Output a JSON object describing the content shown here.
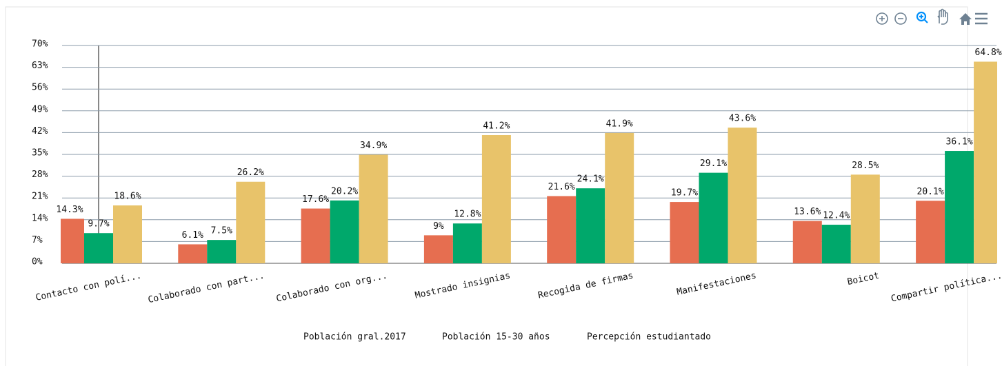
{
  "chart_data": {
    "type": "bar",
    "categories": [
      "Contacto con polí...",
      "Colaborado con part...",
      "Colaborado con org...",
      "Mostrado insignias",
      "Recogida de firmas",
      "Manifestaciones",
      "Boicot",
      "Compartir política..."
    ],
    "series": [
      {
        "name": "Población gral.2017",
        "color": "#e66e50",
        "values": [
          14.3,
          6.1,
          17.6,
          9,
          21.6,
          19.7,
          13.6,
          20.1
        ],
        "value_labels": [
          "14.3%",
          "6.1%",
          "17.6%",
          "9%",
          "21.6%",
          "19.7%",
          "13.6%",
          "20.1%"
        ]
      },
      {
        "name": "Población 15-30 años",
        "color": "#00a86b",
        "values": [
          9.7,
          7.5,
          20.2,
          12.8,
          24.1,
          29.1,
          12.4,
          36.1
        ],
        "value_labels": [
          "9.7%",
          "7.5%",
          "20.2%",
          "12.8%",
          "24.1%",
          "29.1%",
          "12.4%",
          "36.1%"
        ]
      },
      {
        "name": "Percepción estudiantado",
        "color": "#e8c36a",
        "values": [
          18.6,
          26.2,
          34.9,
          41.2,
          41.9,
          43.6,
          28.5,
          64.8
        ],
        "value_labels": [
          "18.6%",
          "26.2%",
          "34.9%",
          "41.2%",
          "41.9%",
          "43.6%",
          "28.5%",
          "64.8%"
        ]
      }
    ],
    "ylim": [
      0,
      70
    ],
    "yticks": [
      {
        "value": 0,
        "label": "0%"
      },
      {
        "value": 7,
        "label": "7%"
      },
      {
        "value": 14,
        "label": "14%"
      },
      {
        "value": 21,
        "label": "21%"
      },
      {
        "value": 28,
        "label": "28%"
      },
      {
        "value": 35,
        "label": "35%"
      },
      {
        "value": 42,
        "label": "42%"
      },
      {
        "value": 49,
        "label": "49%"
      },
      {
        "value": 56,
        "label": "56%"
      },
      {
        "value": 63,
        "label": "63%"
      },
      {
        "value": 70,
        "label": "70%"
      }
    ],
    "grid": true
  }
}
